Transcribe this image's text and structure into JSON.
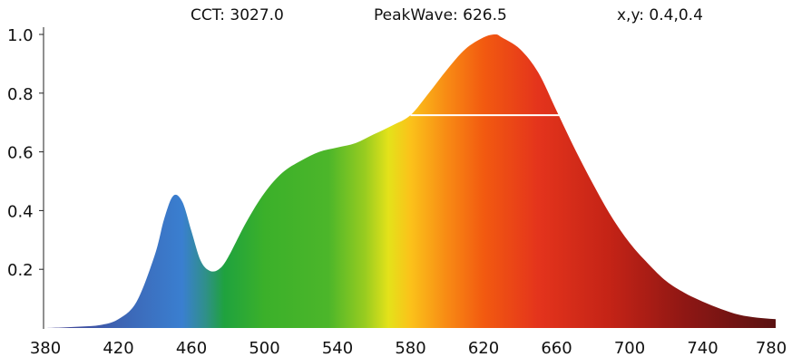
{
  "header": {
    "cct_label": "CCT: 3027.0",
    "peak_label": "PeakWave: 626.5",
    "xy_label": "x,y: 0.4,0.4"
  },
  "chart_data": {
    "type": "area",
    "xlabel": "",
    "ylabel": "",
    "xlim": [
      380,
      780
    ],
    "ylim": [
      0,
      1.0
    ],
    "grid": false,
    "x_ticks": [
      380,
      420,
      460,
      500,
      540,
      580,
      620,
      660,
      700,
      740,
      780
    ],
    "y_ticks": [
      0.2,
      0.4,
      0.6,
      0.8,
      1.0
    ],
    "series": [
      {
        "x": [
          380,
          390,
          400,
          410,
          420,
          430,
          440,
          445,
          450,
          455,
          460,
          465,
          470,
          475,
          480,
          490,
          500,
          510,
          520,
          530,
          540,
          550,
          560,
          570,
          580,
          590,
          600,
          610,
          620,
          626.5,
          630,
          640,
          650,
          660,
          670,
          680,
          690,
          700,
          710,
          720,
          730,
          740,
          750,
          760,
          770,
          780
        ],
        "values": [
          0.0,
          0.002,
          0.005,
          0.01,
          0.03,
          0.09,
          0.25,
          0.37,
          0.45,
          0.43,
          0.33,
          0.23,
          0.195,
          0.2,
          0.24,
          0.36,
          0.46,
          0.53,
          0.57,
          0.6,
          0.615,
          0.63,
          0.66,
          0.69,
          0.725,
          0.8,
          0.88,
          0.95,
          0.99,
          1.0,
          0.99,
          0.95,
          0.87,
          0.74,
          0.61,
          0.49,
          0.38,
          0.29,
          0.22,
          0.16,
          0.12,
          0.09,
          0.065,
          0.045,
          0.035,
          0.03
        ]
      }
    ],
    "annotations": [
      {
        "type": "hline",
        "y": 0.725,
        "x_from": 580,
        "x_to": 674,
        "color": "#ffffff"
      }
    ],
    "gradient_colors": [
      {
        "nm": 380,
        "color": "#3f3a8f"
      },
      {
        "nm": 420,
        "color": "#3d64b3"
      },
      {
        "nm": 455,
        "color": "#3a7fd0"
      },
      {
        "nm": 468,
        "color": "#2f9088"
      },
      {
        "nm": 478,
        "color": "#1fa23e"
      },
      {
        "nm": 500,
        "color": "#3bb02a"
      },
      {
        "nm": 535,
        "color": "#4cb62a"
      },
      {
        "nm": 555,
        "color": "#98cc20"
      },
      {
        "nm": 568,
        "color": "#e4e21a"
      },
      {
        "nm": 580,
        "color": "#fbc21a"
      },
      {
        "nm": 600,
        "color": "#f88a14"
      },
      {
        "nm": 620,
        "color": "#f25a10"
      },
      {
        "nm": 650,
        "color": "#e4341c"
      },
      {
        "nm": 690,
        "color": "#c32316"
      },
      {
        "nm": 730,
        "color": "#8f1714"
      },
      {
        "nm": 780,
        "color": "#5a1212"
      }
    ]
  }
}
